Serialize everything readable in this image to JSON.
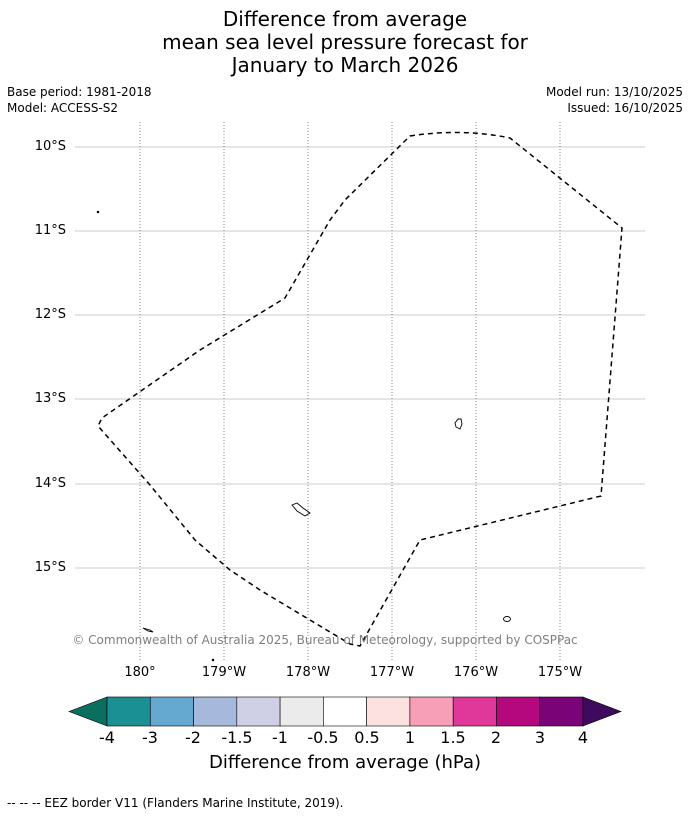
{
  "title": {
    "line1": "Difference from average",
    "line2": "mean sea level pressure forecast for",
    "line3": "January to March 2026"
  },
  "meta": {
    "base_period": "Base period: 1981-2018",
    "model": "Model: ACCESS-S2",
    "model_run": "Model run: 13/10/2025",
    "issued": "Issued: 16/10/2025"
  },
  "map": {
    "lat_labels": [
      "10°S",
      "11°S",
      "12°S",
      "13°S",
      "14°S",
      "15°S"
    ],
    "lon_labels": [
      "180°",
      "179°W",
      "178°W",
      "177°W",
      "176°W",
      "175°W"
    ],
    "copyright": "© Commonwealth of Australia 2025, Bureau of Meteorology, supported by COSPPac",
    "colors": {
      "eez_border": "#000000",
      "lat_grid": "#bbbbbb",
      "lon_grid": "#666666",
      "land_outline": "#000000"
    }
  },
  "colorbar": {
    "title": "Difference from average (hPa)",
    "ticks": [
      "-4",
      "-3",
      "-2",
      "-1.5",
      "-1",
      "-0.5",
      "0.5",
      "1",
      "1.5",
      "2",
      "3",
      "4"
    ],
    "under_color": "#0b6e5e",
    "over_color": "#3d0a5e",
    "colors": [
      "#1a9095",
      "#65a8d0",
      "#a6b8dc",
      "#cfd0e6",
      "#ebebeb",
      "#ffffff",
      "#fde0e0",
      "#f89fb8",
      "#e0379a",
      "#b5087e",
      "#7a0378"
    ]
  },
  "footer": {
    "legend": "--  --  -- EEZ border V11 (Flanders Marine Institute, 2019)."
  }
}
